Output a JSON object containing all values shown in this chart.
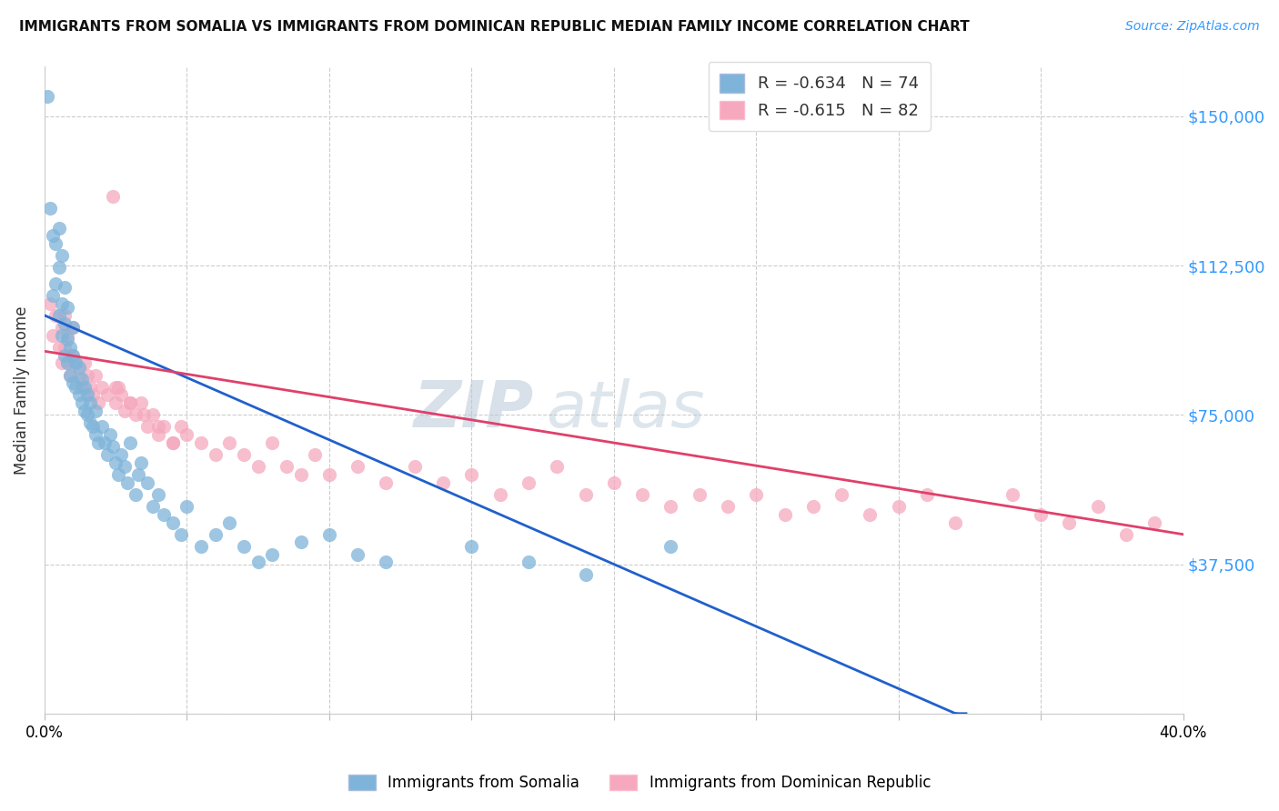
{
  "title": "IMMIGRANTS FROM SOMALIA VS IMMIGRANTS FROM DOMINICAN REPUBLIC MEDIAN FAMILY INCOME CORRELATION CHART",
  "source": "Source: ZipAtlas.com",
  "ylabel": "Median Family Income",
  "xlim": [
    0.0,
    0.4
  ],
  "ylim": [
    0,
    162500
  ],
  "ytick_vals": [
    0,
    37500,
    75000,
    112500,
    150000
  ],
  "ytick_labels_right": [
    "",
    "$37,500",
    "$75,000",
    "$112,500",
    "$150,000"
  ],
  "xtick_positions": [
    0.0,
    0.05,
    0.1,
    0.15,
    0.2,
    0.25,
    0.3,
    0.35,
    0.4
  ],
  "xtick_labels": [
    "0.0%",
    "",
    "",
    "",
    "",
    "",
    "",
    "",
    "40.0%"
  ],
  "somalia_color": "#7EB4D9",
  "dr_color": "#F5A8BE",
  "somalia_line_color": "#2060CC",
  "dr_line_color": "#E0406A",
  "watermark": "ZIPatlas",
  "legend_somalia_label": "Immigrants from Somalia",
  "legend_dr_label": "Immigrants from Dominican Republic",
  "somalia_legend_text": "R = -0.634   N = 74",
  "dr_legend_text": "R = -0.615   N = 82",
  "somalia_N": 74,
  "dr_N": 82,
  "somalia_R": -0.634,
  "dr_R": -0.615,
  "som_x": [
    0.001,
    0.002,
    0.003,
    0.003,
    0.004,
    0.004,
    0.005,
    0.005,
    0.005,
    0.006,
    0.006,
    0.006,
    0.007,
    0.007,
    0.007,
    0.008,
    0.008,
    0.008,
    0.009,
    0.009,
    0.01,
    0.01,
    0.01,
    0.011,
    0.011,
    0.012,
    0.012,
    0.013,
    0.013,
    0.014,
    0.014,
    0.015,
    0.015,
    0.016,
    0.016,
    0.017,
    0.018,
    0.018,
    0.019,
    0.02,
    0.021,
    0.022,
    0.023,
    0.024,
    0.025,
    0.026,
    0.027,
    0.028,
    0.029,
    0.03,
    0.032,
    0.033,
    0.034,
    0.036,
    0.038,
    0.04,
    0.042,
    0.045,
    0.048,
    0.05,
    0.055,
    0.06,
    0.065,
    0.07,
    0.075,
    0.08,
    0.09,
    0.1,
    0.11,
    0.12,
    0.15,
    0.17,
    0.19,
    0.22
  ],
  "som_y": [
    155000,
    127000,
    105000,
    120000,
    108000,
    118000,
    100000,
    112000,
    122000,
    95000,
    103000,
    115000,
    90000,
    98000,
    107000,
    88000,
    94000,
    102000,
    85000,
    92000,
    83000,
    90000,
    97000,
    82000,
    88000,
    80000,
    87000,
    78000,
    84000,
    76000,
    82000,
    75000,
    80000,
    73000,
    78000,
    72000,
    70000,
    76000,
    68000,
    72000,
    68000,
    65000,
    70000,
    67000,
    63000,
    60000,
    65000,
    62000,
    58000,
    68000,
    55000,
    60000,
    63000,
    58000,
    52000,
    55000,
    50000,
    48000,
    45000,
    52000,
    42000,
    45000,
    48000,
    42000,
    38000,
    40000,
    43000,
    45000,
    40000,
    38000,
    42000,
    38000,
    35000,
    42000
  ],
  "dr_x": [
    0.002,
    0.003,
    0.004,
    0.005,
    0.006,
    0.006,
    0.007,
    0.007,
    0.008,
    0.008,
    0.009,
    0.01,
    0.01,
    0.011,
    0.012,
    0.013,
    0.014,
    0.015,
    0.016,
    0.017,
    0.018,
    0.019,
    0.02,
    0.022,
    0.024,
    0.025,
    0.026,
    0.027,
    0.028,
    0.03,
    0.032,
    0.034,
    0.036,
    0.038,
    0.04,
    0.042,
    0.045,
    0.048,
    0.05,
    0.055,
    0.06,
    0.065,
    0.07,
    0.075,
    0.08,
    0.085,
    0.09,
    0.095,
    0.1,
    0.11,
    0.12,
    0.13,
    0.14,
    0.15,
    0.16,
    0.17,
    0.18,
    0.19,
    0.2,
    0.21,
    0.22,
    0.23,
    0.24,
    0.25,
    0.26,
    0.27,
    0.28,
    0.29,
    0.3,
    0.31,
    0.32,
    0.34,
    0.35,
    0.36,
    0.37,
    0.38,
    0.39,
    0.025,
    0.03,
    0.035,
    0.04,
    0.045
  ],
  "dr_y": [
    103000,
    95000,
    100000,
    92000,
    88000,
    97000,
    92000,
    100000,
    88000,
    95000,
    85000,
    90000,
    97000,
    88000,
    85000,
    82000,
    88000,
    85000,
    82000,
    80000,
    85000,
    78000,
    82000,
    80000,
    130000,
    78000,
    82000,
    80000,
    76000,
    78000,
    75000,
    78000,
    72000,
    75000,
    70000,
    72000,
    68000,
    72000,
    70000,
    68000,
    65000,
    68000,
    65000,
    62000,
    68000,
    62000,
    60000,
    65000,
    60000,
    62000,
    58000,
    62000,
    58000,
    60000,
    55000,
    58000,
    62000,
    55000,
    58000,
    55000,
    52000,
    55000,
    52000,
    55000,
    50000,
    52000,
    55000,
    50000,
    52000,
    55000,
    48000,
    55000,
    50000,
    48000,
    52000,
    45000,
    48000,
    82000,
    78000,
    75000,
    72000,
    68000
  ]
}
